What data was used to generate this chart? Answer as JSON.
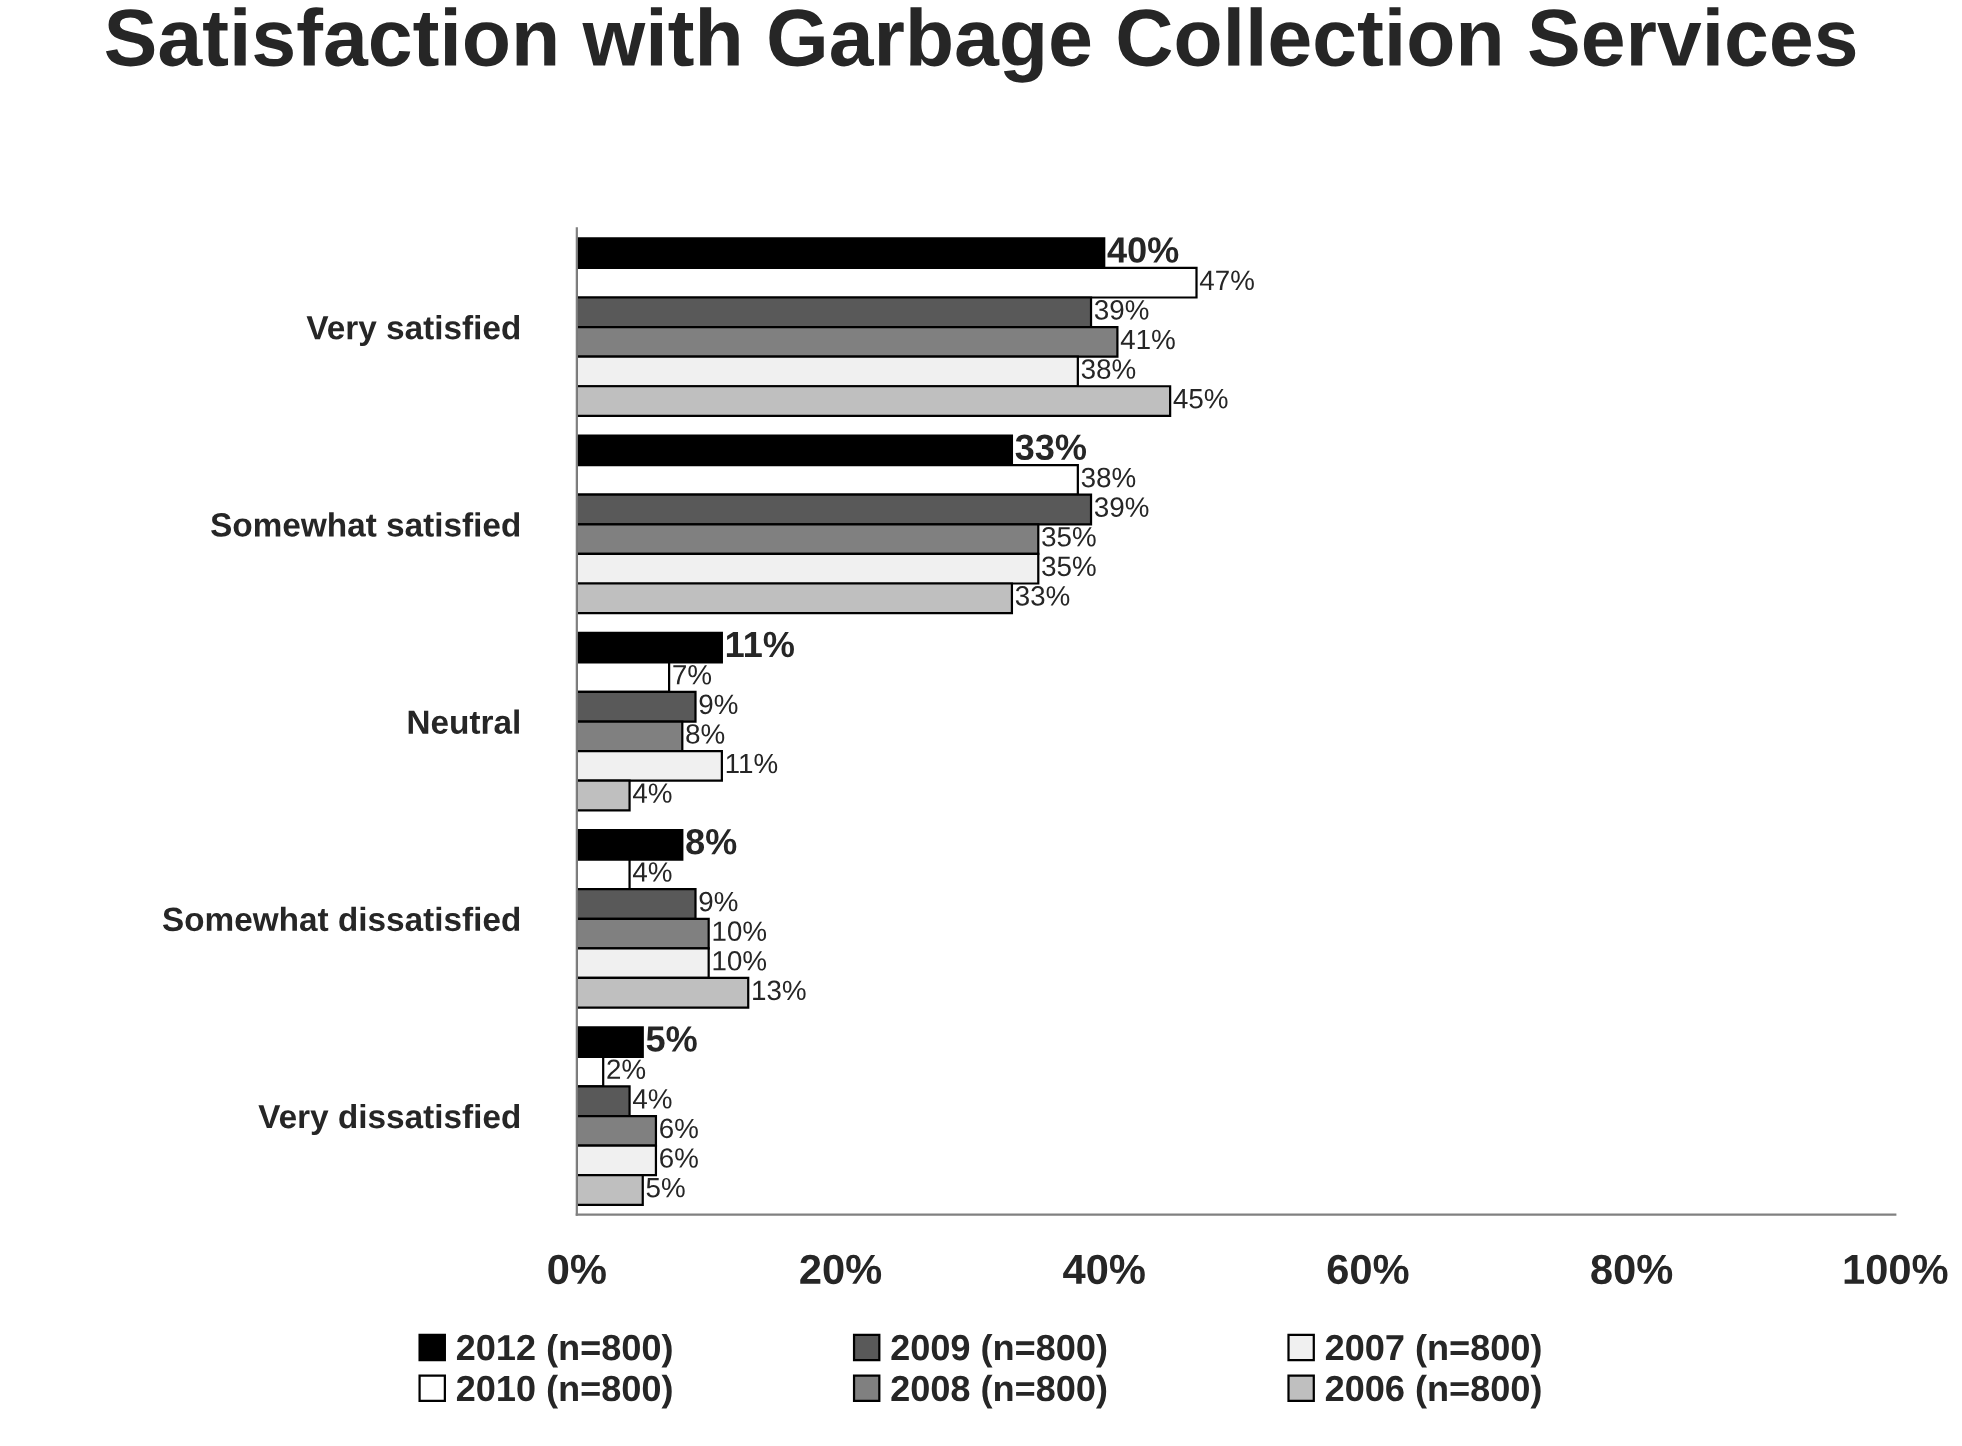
{
  "chart_data": {
    "type": "bar",
    "orientation": "horizontal",
    "title": "Satisfaction with Garbage Collection Services",
    "categories": [
      "Very satisfied",
      "Somewhat satisfied",
      "Neutral",
      "Somewhat dissatisfied",
      "Very dissatisfied"
    ],
    "series": [
      {
        "name": "2012 (n=800)",
        "color": "#000000",
        "values": [
          40,
          33,
          11,
          8,
          5
        ],
        "value_labels": [
          "40%",
          "33%",
          "11%",
          "8%",
          "5%"
        ]
      },
      {
        "name": "2010 (n=800)",
        "color": "#ffffff",
        "values": [
          47,
          38,
          7,
          4,
          2
        ],
        "value_labels": [
          "47%",
          "38%",
          "7%",
          "4%",
          "2%"
        ]
      },
      {
        "name": "2009 (n=800)",
        "color": "#595959",
        "values": [
          39,
          39,
          9,
          9,
          4
        ],
        "value_labels": [
          "39%",
          "39%",
          "9%",
          "9%",
          "4%"
        ]
      },
      {
        "name": "2008 (n=800)",
        "color": "#808080",
        "values": [
          41,
          35,
          8,
          10,
          6
        ],
        "value_labels": [
          "41%",
          "35%",
          "8%",
          "10%",
          "6%"
        ]
      },
      {
        "name": "2007 (n=800)",
        "color": "#f0f0f0",
        "values": [
          38,
          35,
          11,
          10,
          6
        ],
        "value_labels": [
          "38%",
          "35%",
          "11%",
          "10%",
          "6%"
        ]
      },
      {
        "name": "2006 (n=800)",
        "color": "#bfbfbf",
        "values": [
          45,
          33,
          4,
          13,
          5
        ],
        "value_labels": [
          "45%",
          "33%",
          "4%",
          "13%",
          "5%"
        ]
      }
    ],
    "xlim": [
      0,
      100
    ],
    "xticks": [
      {
        "value": 0,
        "label": "0%"
      },
      {
        "value": 20,
        "label": "20%"
      },
      {
        "value": 40,
        "label": "40%"
      },
      {
        "value": 60,
        "label": "60%"
      },
      {
        "value": 80,
        "label": "80%"
      },
      {
        "value": 100,
        "label": "100%"
      }
    ],
    "grid": false,
    "legend": "bottom"
  }
}
